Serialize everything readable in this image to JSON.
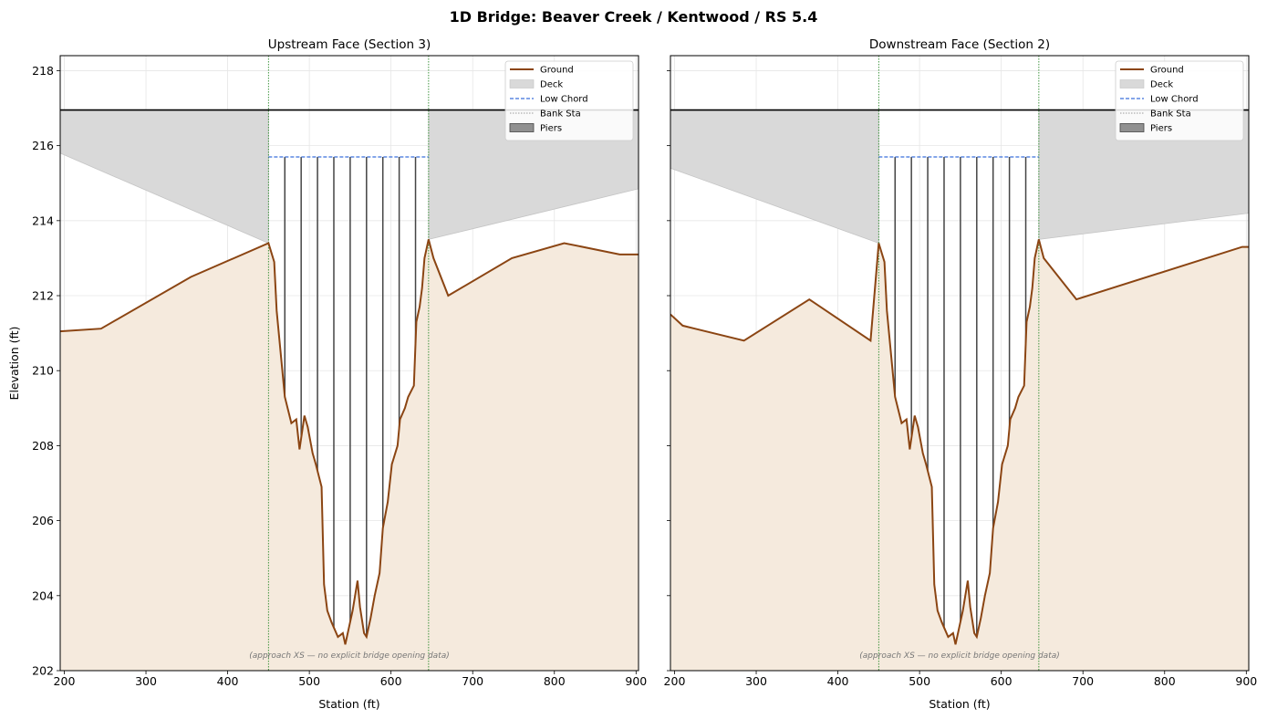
{
  "figure": {
    "title": "1D Bridge: Beaver Creek / Kentwood / RS 5.4"
  },
  "colors": {
    "ground": "#8B4513",
    "ground_fill": "#f5eadd",
    "deck": "#d9d9d9",
    "low_chord": "#3a6fdc",
    "bank": "#2e8b2e",
    "pier": "#444444",
    "top_line": "#000000",
    "grid": "#e6e6e6"
  },
  "legend_items": [
    "Ground",
    "Deck",
    "Low Chord",
    "Bank Sta",
    "Piers"
  ],
  "chart_data": [
    {
      "type": "line",
      "title": "Upstream Face (Section 3)",
      "xlabel": "Station (ft)",
      "ylabel": "Elevation (ft)",
      "xlim": [
        195,
        903
      ],
      "ylim": [
        202,
        218.4
      ],
      "xticks": [
        200,
        300,
        400,
        500,
        600,
        700,
        800,
        900
      ],
      "yticks": [
        202,
        204,
        206,
        208,
        210,
        212,
        214,
        216,
        218
      ],
      "grid": true,
      "legend_position": "top-right",
      "annotation": "(approach XS — no explicit bridge opening data)",
      "high_chord_elevation": 216.95,
      "low_chord": {
        "x": [
          450,
          646
        ],
        "elevation": 215.7
      },
      "bank_stations": [
        450,
        646
      ],
      "deck_bottom_left": [
        [
          195,
          215.8
        ],
        [
          450,
          213.4
        ]
      ],
      "deck_bottom_right": [
        [
          646,
          213.5
        ],
        [
          903,
          214.85
        ]
      ],
      "piers": [
        470,
        490,
        510,
        530,
        550,
        570,
        590,
        610,
        630
      ],
      "ground": [
        [
          195,
          211.05
        ],
        [
          245,
          211.12
        ],
        [
          355,
          212.5
        ],
        [
          450,
          213.4
        ],
        [
          457,
          212.9
        ],
        [
          460,
          211.6
        ],
        [
          470,
          209.3
        ],
        [
          478,
          208.6
        ],
        [
          484,
          208.7
        ],
        [
          488,
          207.9
        ],
        [
          494,
          208.8
        ],
        [
          498,
          208.5
        ],
        [
          504,
          207.8
        ],
        [
          508,
          207.5
        ],
        [
          515,
          206.9
        ],
        [
          518,
          204.3
        ],
        [
          522,
          203.6
        ],
        [
          527,
          203.3
        ],
        [
          535,
          202.9
        ],
        [
          541,
          203.0
        ],
        [
          544,
          202.7
        ],
        [
          548,
          203.1
        ],
        [
          553,
          203.6
        ],
        [
          556,
          204.0
        ],
        [
          559,
          204.4
        ],
        [
          562,
          203.7
        ],
        [
          567,
          203.0
        ],
        [
          570,
          202.9
        ],
        [
          575,
          203.4
        ],
        [
          580,
          204.0
        ],
        [
          586,
          204.6
        ],
        [
          590,
          205.8
        ],
        [
          596,
          206.5
        ],
        [
          601,
          207.5
        ],
        [
          608,
          208.0
        ],
        [
          611,
          208.7
        ],
        [
          617,
          209.0
        ],
        [
          621,
          209.3
        ],
        [
          628,
          209.6
        ],
        [
          631,
          211.3
        ],
        [
          635,
          211.7
        ],
        [
          638,
          212.2
        ],
        [
          641,
          213.0
        ],
        [
          644,
          213.3
        ],
        [
          646,
          213.5
        ],
        [
          652,
          213.0
        ],
        [
          670,
          212.0
        ],
        [
          748,
          213.0
        ],
        [
          812,
          213.4
        ],
        [
          880,
          213.1
        ],
        [
          903,
          213.1
        ]
      ]
    },
    {
      "type": "line",
      "title": "Downstream Face (Section 2)",
      "xlabel": "Station (ft)",
      "ylabel": "",
      "xlim": [
        195,
        903
      ],
      "ylim": [
        202,
        218.4
      ],
      "xticks": [
        200,
        300,
        400,
        500,
        600,
        700,
        800,
        900
      ],
      "yticks": [
        202,
        204,
        206,
        208,
        210,
        212,
        214,
        216,
        218
      ],
      "grid": true,
      "legend_position": "top-right",
      "annotation": "(approach XS — no explicit bridge opening data)",
      "high_chord_elevation": 216.95,
      "low_chord": {
        "x": [
          450,
          646
        ],
        "elevation": 215.7
      },
      "bank_stations": [
        450,
        646
      ],
      "deck_bottom_left": [
        [
          195,
          215.4
        ],
        [
          450,
          213.4
        ]
      ],
      "deck_bottom_right": [
        [
          646,
          213.5
        ],
        [
          903,
          214.2
        ]
      ],
      "piers": [
        470,
        490,
        510,
        530,
        550,
        570,
        590,
        610,
        630
      ],
      "ground": [
        [
          195,
          211.5
        ],
        [
          210,
          211.2
        ],
        [
          285,
          210.8
        ],
        [
          365,
          211.9
        ],
        [
          440,
          210.8
        ],
        [
          450,
          213.4
        ],
        [
          457,
          212.9
        ],
        [
          460,
          211.6
        ],
        [
          470,
          209.3
        ],
        [
          478,
          208.6
        ],
        [
          484,
          208.7
        ],
        [
          488,
          207.9
        ],
        [
          494,
          208.8
        ],
        [
          498,
          208.5
        ],
        [
          504,
          207.8
        ],
        [
          508,
          207.5
        ],
        [
          515,
          206.9
        ],
        [
          518,
          204.3
        ],
        [
          522,
          203.6
        ],
        [
          527,
          203.3
        ],
        [
          535,
          202.9
        ],
        [
          541,
          203.0
        ],
        [
          544,
          202.7
        ],
        [
          548,
          203.1
        ],
        [
          553,
          203.6
        ],
        [
          556,
          204.0
        ],
        [
          559,
          204.4
        ],
        [
          562,
          203.7
        ],
        [
          567,
          203.0
        ],
        [
          570,
          202.9
        ],
        [
          575,
          203.4
        ],
        [
          580,
          204.0
        ],
        [
          586,
          204.6
        ],
        [
          590,
          205.8
        ],
        [
          596,
          206.5
        ],
        [
          601,
          207.5
        ],
        [
          608,
          208.0
        ],
        [
          611,
          208.7
        ],
        [
          617,
          209.0
        ],
        [
          621,
          209.3
        ],
        [
          628,
          209.6
        ],
        [
          631,
          211.3
        ],
        [
          635,
          211.7
        ],
        [
          638,
          212.2
        ],
        [
          641,
          213.0
        ],
        [
          644,
          213.3
        ],
        [
          646,
          213.5
        ],
        [
          652,
          213.0
        ],
        [
          692,
          211.9
        ],
        [
          895,
          213.3
        ],
        [
          903,
          213.3
        ]
      ]
    }
  ]
}
